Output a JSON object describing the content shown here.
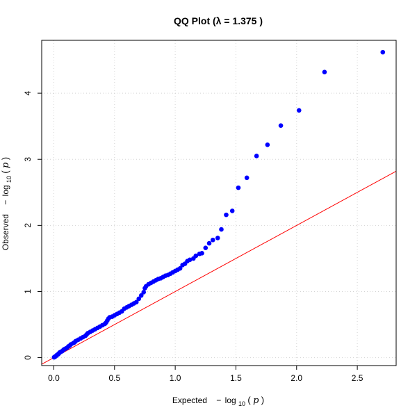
{
  "chart_data": {
    "type": "scatter",
    "title": "QQ Plot (λ = 1.375 )",
    "xlabel": {
      "prefix": "Expected",
      "minus": "−",
      "log": "log",
      "base": "10",
      "open": "(",
      "var": "p",
      "close": ")"
    },
    "ylabel": {
      "prefix": "Observed",
      "minus": "−",
      "log": "log",
      "base": "10",
      "open": "(",
      "var": "p",
      "close": ")"
    },
    "xlim": [
      -0.1,
      2.82
    ],
    "ylim": [
      -0.12,
      4.8
    ],
    "xticks": [
      0.0,
      0.5,
      1.0,
      1.5,
      2.0,
      2.5
    ],
    "xtick_labels": [
      "0.0",
      "0.5",
      "1.0",
      "1.5",
      "2.0",
      "2.5"
    ],
    "yticks": [
      0,
      1,
      2,
      3,
      4
    ],
    "ytick_labels": [
      "0",
      "1",
      "2",
      "3",
      "4"
    ],
    "grid": true,
    "reference_line": {
      "slope": 1,
      "intercept": 0,
      "color": "#ff0000"
    },
    "point_color": "#0000ff",
    "series": [
      {
        "points": [
          [
            2.71,
            4.62
          ],
          [
            2.23,
            4.32
          ],
          [
            2.02,
            3.74
          ],
          [
            1.87,
            3.51
          ],
          [
            1.76,
            3.22
          ],
          [
            1.67,
            3.05
          ],
          [
            1.59,
            2.72
          ],
          [
            1.52,
            2.57
          ],
          [
            1.47,
            2.22
          ],
          [
            1.42,
            2.16
          ],
          [
            1.38,
            1.94
          ],
          [
            1.35,
            1.81
          ],
          [
            1.31,
            1.78
          ],
          [
            1.28,
            1.73
          ],
          [
            1.25,
            1.66
          ],
          [
            1.22,
            1.58
          ],
          [
            1.2,
            1.57
          ],
          [
            1.17,
            1.54
          ],
          [
            1.15,
            1.5
          ],
          [
            1.12,
            1.48
          ],
          [
            1.1,
            1.46
          ],
          [
            1.08,
            1.42
          ],
          [
            1.06,
            1.4
          ],
          [
            1.04,
            1.35
          ],
          [
            1.02,
            1.33
          ],
          [
            1.0,
            1.31
          ],
          [
            0.98,
            1.29
          ],
          [
            0.96,
            1.27
          ],
          [
            0.94,
            1.25
          ],
          [
            0.92,
            1.24
          ],
          [
            0.9,
            1.22
          ],
          [
            0.88,
            1.2
          ],
          [
            0.86,
            1.19
          ],
          [
            0.84,
            1.17
          ],
          [
            0.82,
            1.15
          ],
          [
            0.8,
            1.13
          ],
          [
            0.78,
            1.11
          ],
          [
            0.76,
            1.08
          ],
          [
            0.75,
            1.05
          ],
          [
            0.74,
            0.99
          ],
          [
            0.72,
            0.94
          ],
          [
            0.7,
            0.89
          ],
          [
            0.68,
            0.84
          ],
          [
            0.66,
            0.82
          ],
          [
            0.64,
            0.8
          ],
          [
            0.62,
            0.78
          ],
          [
            0.6,
            0.76
          ],
          [
            0.58,
            0.74
          ],
          [
            0.56,
            0.7
          ],
          [
            0.54,
            0.68
          ],
          [
            0.52,
            0.66
          ],
          [
            0.5,
            0.64
          ],
          [
            0.48,
            0.62
          ],
          [
            0.46,
            0.61
          ],
          [
            0.45,
            0.59
          ],
          [
            0.44,
            0.56
          ],
          [
            0.43,
            0.53
          ],
          [
            0.42,
            0.51
          ],
          [
            0.4,
            0.49
          ],
          [
            0.38,
            0.47
          ],
          [
            0.36,
            0.45
          ],
          [
            0.34,
            0.43
          ],
          [
            0.32,
            0.41
          ],
          [
            0.3,
            0.39
          ],
          [
            0.28,
            0.37
          ],
          [
            0.27,
            0.35
          ],
          [
            0.26,
            0.33
          ],
          [
            0.24,
            0.31
          ],
          [
            0.22,
            0.29
          ],
          [
            0.2,
            0.27
          ],
          [
            0.18,
            0.25
          ],
          [
            0.17,
            0.23
          ],
          [
            0.16,
            0.22
          ],
          [
            0.14,
            0.2
          ],
          [
            0.13,
            0.18
          ],
          [
            0.12,
            0.17
          ],
          [
            0.11,
            0.15
          ],
          [
            0.1,
            0.14
          ],
          [
            0.09,
            0.13
          ],
          [
            0.08,
            0.12
          ],
          [
            0.07,
            0.1
          ],
          [
            0.06,
            0.09
          ],
          [
            0.05,
            0.08
          ],
          [
            0.045,
            0.07
          ],
          [
            0.04,
            0.06
          ],
          [
            0.035,
            0.05
          ],
          [
            0.03,
            0.045
          ],
          [
            0.025,
            0.04
          ],
          [
            0.02,
            0.03
          ],
          [
            0.015,
            0.02
          ],
          [
            0.01,
            0.015
          ],
          [
            0.005,
            0.01
          ],
          [
            0.002,
            0.005
          ]
        ]
      }
    ]
  }
}
